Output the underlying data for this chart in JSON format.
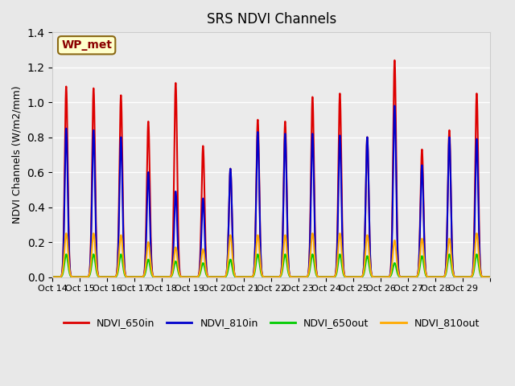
{
  "title": "SRS NDVI Channels",
  "ylabel": "NDVI Channels (W/m2/mm)",
  "annotation": "WP_met",
  "ylim": [
    0.0,
    1.4
  ],
  "fig_facecolor": "#e8e8e8",
  "ax_facecolor": "#ebebeb",
  "x_tick_labels": [
    "Oct 14",
    "Oct 15",
    "Oct 16",
    "Oct 17",
    "Oct 18",
    "Oct 19",
    "Oct 20",
    "Oct 21",
    "Oct 22",
    "Oct 23",
    "Oct 24",
    "Oct 25",
    "Oct 26",
    "Oct 27",
    "Oct 28",
    "Oct 29",
    ""
  ],
  "x_tick_positions": [
    0,
    1,
    2,
    3,
    4,
    5,
    6,
    7,
    8,
    9,
    10,
    11,
    12,
    13,
    14,
    15,
    16
  ],
  "series": {
    "NDVI_650in": {
      "color": "#dd0000",
      "lw": 1.5
    },
    "NDVI_810in": {
      "color": "#0000cc",
      "lw": 1.5
    },
    "NDVI_650out": {
      "color": "#00cc00",
      "lw": 1.5
    },
    "NDVI_810out": {
      "color": "#ffaa00",
      "lw": 1.5
    }
  },
  "peaks_650in": [
    1.09,
    1.08,
    1.04,
    0.89,
    1.11,
    0.75,
    0.62,
    0.9,
    0.89,
    1.03,
    1.05,
    0.8,
    1.24,
    0.73,
    0.84,
    1.05
  ],
  "peaks_810in": [
    0.85,
    0.84,
    0.8,
    0.6,
    0.49,
    0.45,
    0.62,
    0.83,
    0.82,
    0.82,
    0.81,
    0.8,
    0.98,
    0.64,
    0.8,
    0.79
  ],
  "peaks_650out": [
    0.13,
    0.13,
    0.13,
    0.1,
    0.09,
    0.08,
    0.1,
    0.13,
    0.13,
    0.13,
    0.13,
    0.12,
    0.08,
    0.12,
    0.13,
    0.13
  ],
  "peaks_810out": [
    0.25,
    0.25,
    0.24,
    0.2,
    0.17,
    0.16,
    0.24,
    0.24,
    0.24,
    0.25,
    0.25,
    0.24,
    0.21,
    0.22,
    0.22,
    0.25
  ]
}
